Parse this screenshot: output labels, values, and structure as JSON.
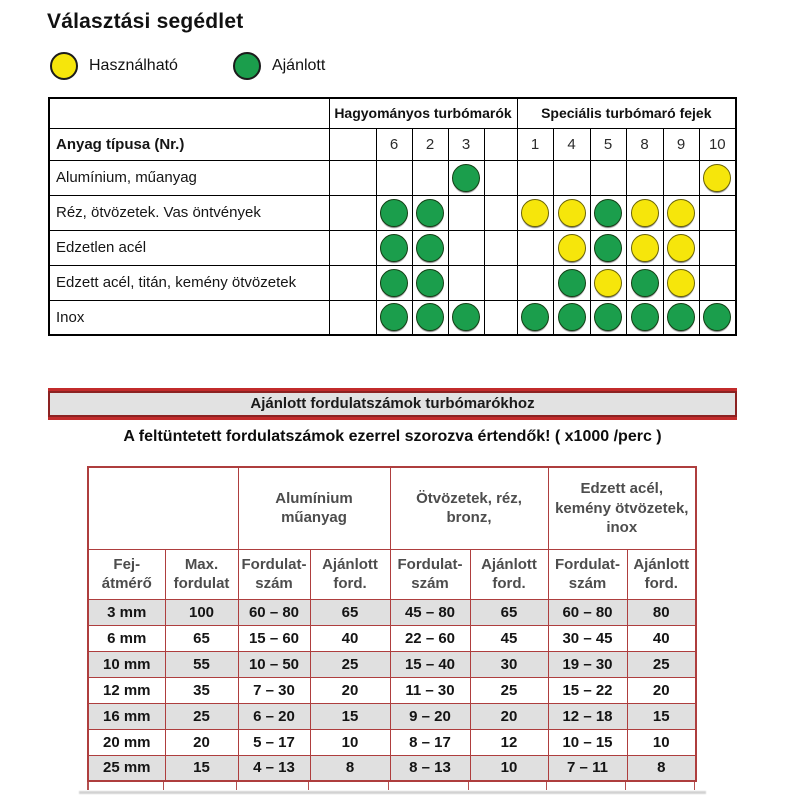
{
  "page": {
    "title": "Választási segédlet"
  },
  "legend": {
    "usable_label": "Használható",
    "recommended_label": "Ajánlott",
    "usable_color": "#f6e60b",
    "recommended_color": "#1b9e4c"
  },
  "selection_table": {
    "group_headers": [
      "Hagyományos turbómarók",
      "Speciális turbómaró fejek"
    ],
    "row_header_label": "Anyag típusa (Nr.)",
    "column_numbers": [
      "",
      "6",
      "2",
      "3",
      "",
      "1",
      "4",
      "5",
      "8",
      "9",
      "10"
    ],
    "rows": [
      {
        "label": "Alumínium, műanyag",
        "dots": [
          "",
          "",
          "",
          "G",
          "",
          "",
          "",
          "",
          "",
          "",
          "Y"
        ]
      },
      {
        "label": "Réz, ötvözetek. Vas öntvények",
        "dots": [
          "",
          "G",
          "G",
          "",
          "",
          "Y",
          "Y",
          "G",
          "Y",
          "Y",
          ""
        ]
      },
      {
        "label": "Edzetlen acél",
        "dots": [
          "",
          "G",
          "G",
          "",
          "",
          "",
          "Y",
          "G",
          "Y",
          "Y",
          ""
        ]
      },
      {
        "label": "Edzett acél, titán, kemény ötvözetek",
        "dots": [
          "",
          "G",
          "G",
          "",
          "",
          "",
          "G",
          "Y",
          "G",
          "Y",
          ""
        ]
      },
      {
        "label": "Inox",
        "dots": [
          "",
          "G",
          "G",
          "G",
          "",
          "G",
          "G",
          "G",
          "G",
          "G",
          "G"
        ]
      }
    ],
    "dot_legend": {
      "G": "Ajánlott",
      "Y": "Használható"
    }
  },
  "speed_section": {
    "banner": "Ajánlott fordulatszámok turbómarókhoz",
    "note": "A feltüntetett fordulatszámok ezerrel szorozva értendők! ( x1000 /perc )"
  },
  "speed_table": {
    "group_headers": [
      "Alumínium\nműanyag",
      "Ötvözetek, réz,\nbronz,",
      "Edzett acél,\nkemény ötvözetek,\ninox"
    ],
    "sub_headers": [
      "Fej-\nátmérő",
      "Max.\nfordulat",
      "Fordulat-\nszám",
      "Ajánlott\nford.",
      "Fordulat-\nszám",
      "Ajánlott\nford.",
      "Fordulat-\nszám",
      "Ajánlott\nford."
    ],
    "rows": [
      [
        "3 mm",
        "100",
        "60 – 80",
        "65",
        "45 – 80",
        "65",
        "60 – 80",
        "80"
      ],
      [
        "6 mm",
        "65",
        "15 – 60",
        "40",
        "22 – 60",
        "45",
        "30 – 45",
        "40"
      ],
      [
        "10 mm",
        "55",
        "10 – 50",
        "25",
        "15 –  40",
        "30",
        "19 – 30",
        "25"
      ],
      [
        "12 mm",
        "35",
        "7 – 30",
        "20",
        "11 – 30",
        "25",
        "15 – 22",
        "20"
      ],
      [
        "16 mm",
        "25",
        "6 – 20",
        "15",
        "9 – 20",
        "20",
        "12 – 18",
        "15"
      ],
      [
        "20 mm",
        "20",
        "5 – 17",
        "10",
        "8 – 17",
        "12",
        "10 – 15",
        "10"
      ],
      [
        "25 mm",
        "15",
        "4 – 13",
        "8",
        "8 – 13",
        "10",
        "7 – 11",
        "8"
      ]
    ]
  },
  "colors": {
    "dot_green": "#1b9e4c",
    "dot_yellow": "#f6e60b",
    "speed_table_border": "#ae3e3e",
    "banner_outer_red": "#c22b2b",
    "banner_inner_maroon": "#8c2222",
    "banner_fill": "#e2e2e2",
    "zebra_gray": "#e0e0e0",
    "matrix_border": "#000000"
  }
}
